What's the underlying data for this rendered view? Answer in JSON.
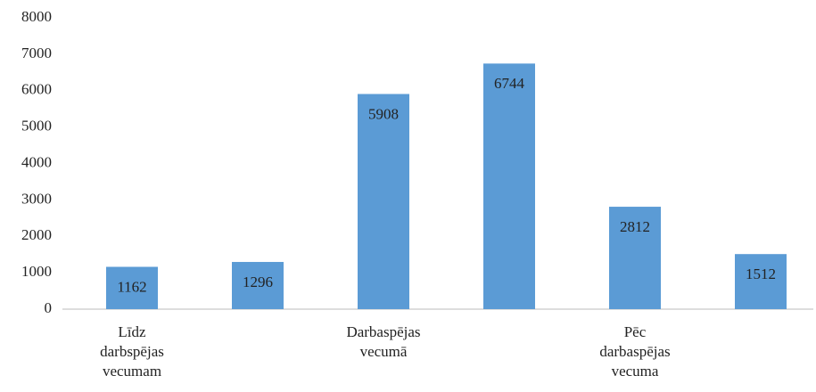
{
  "chart_data": {
    "type": "bar",
    "categories": [
      "Līdz darbspējas vecumam",
      null,
      "Darbaspējas vecumā",
      null,
      "Pēc darbaspējas vecuma",
      null
    ],
    "values": [
      1162,
      1296,
      5908,
      6744,
      2812,
      1512
    ],
    "color": "#5b9bd5",
    "ylim": [
      0,
      8000
    ],
    "yticks": [
      0,
      1000,
      2000,
      3000,
      4000,
      5000,
      6000,
      7000,
      8000
    ],
    "grid": false
  }
}
